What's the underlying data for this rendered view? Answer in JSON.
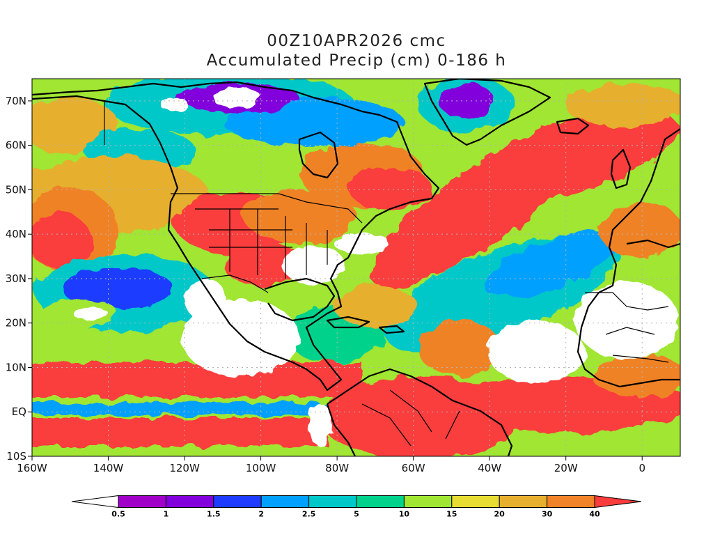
{
  "title": {
    "line1": "00Z10APR2026 cmc",
    "line2": "Accumulated Precip (cm) 0-186 h"
  },
  "map": {
    "lon_range": [
      -160,
      10
    ],
    "lat_range": [
      -10,
      75
    ],
    "x_ticks": [
      {
        "lon": -160,
        "label": "160W"
      },
      {
        "lon": -140,
        "label": "140W"
      },
      {
        "lon": -120,
        "label": "120W"
      },
      {
        "lon": -100,
        "label": "100W"
      },
      {
        "lon": -80,
        "label": "80W"
      },
      {
        "lon": -60,
        "label": "60W"
      },
      {
        "lon": -40,
        "label": "40W"
      },
      {
        "lon": -20,
        "label": "20W"
      },
      {
        "lon": 0,
        "label": "0"
      }
    ],
    "y_ticks": [
      {
        "lat": 70,
        "label": "70N"
      },
      {
        "lat": 60,
        "label": "60N"
      },
      {
        "lat": 50,
        "label": "50N"
      },
      {
        "lat": 40,
        "label": "40N"
      },
      {
        "lat": 30,
        "label": "30N"
      },
      {
        "lat": 20,
        "label": "20N"
      },
      {
        "lat": 10,
        "label": "10N"
      },
      {
        "lat": 0,
        "label": "EQ"
      },
      {
        "lat": -10,
        "label": "10S"
      }
    ],
    "grid": "dotted"
  },
  "colorbar": {
    "labels": [
      "0.5",
      "1",
      "1.5",
      "2",
      "2.5",
      "5",
      "10",
      "15",
      "20",
      "30",
      "40"
    ],
    "colors": [
      "#ffffff",
      "#a000c8",
      "#8200dc",
      "#1e3cff",
      "#00a0ff",
      "#00c8c8",
      "#00d28c",
      "#a0e632",
      "#e6dc32",
      "#e6af2d",
      "#f08228",
      "#fa3c3c"
    ]
  },
  "colors": {
    "frame": "#000000",
    "coast": "#000000",
    "grid": "#b4b4b4"
  }
}
